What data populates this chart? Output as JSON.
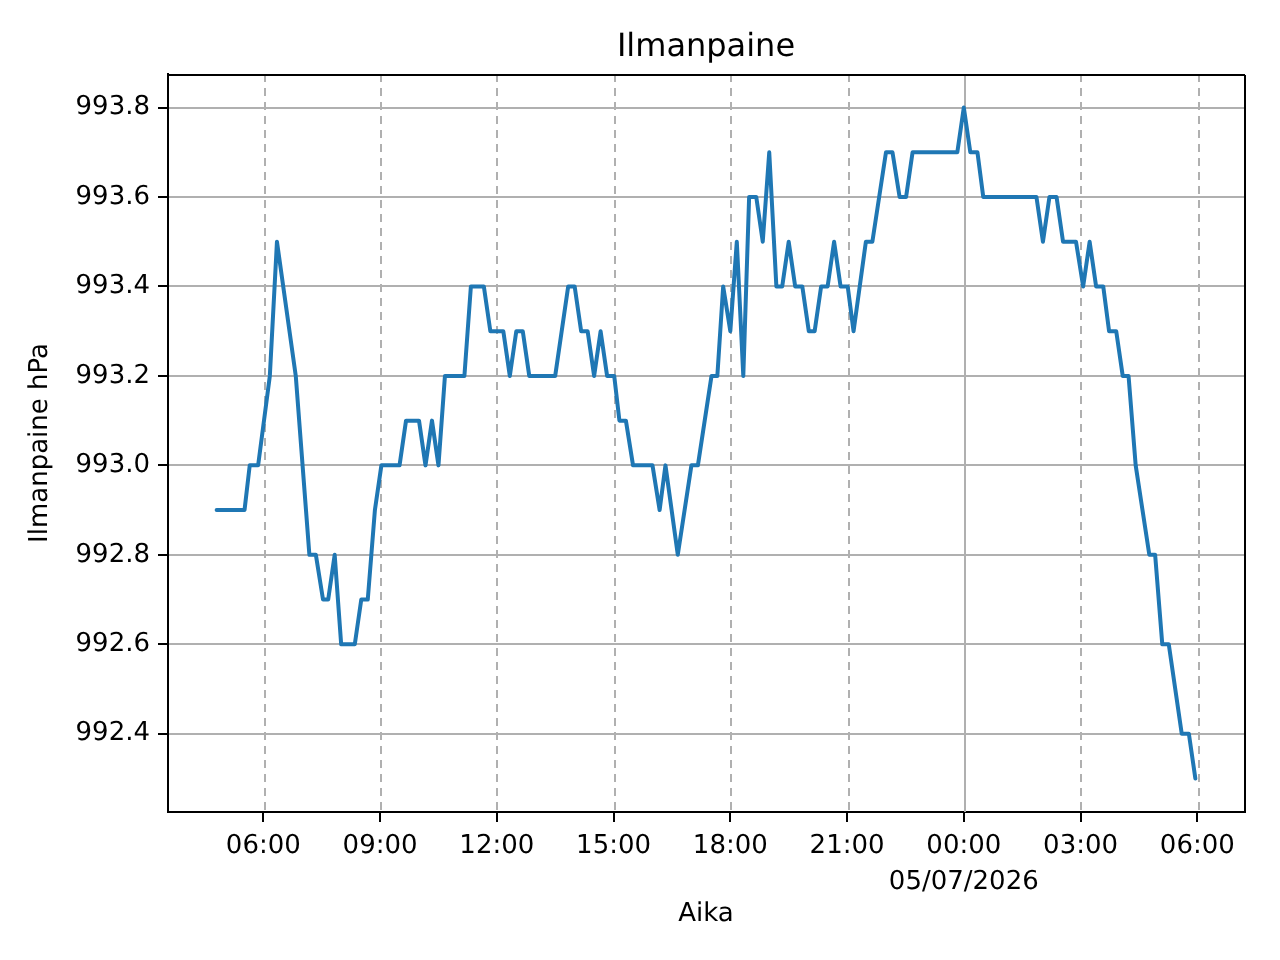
{
  "chart_data": {
    "type": "line",
    "title": "Ilmanpaine",
    "xlabel": "Aika",
    "ylabel": "Ilmanpaine hPa",
    "color": "#1f77b4",
    "grid": true,
    "x": [
      "2026-05-06T04:48",
      "2026-05-06T05:31",
      "2026-05-06T05:39",
      "2026-05-06T05:52",
      "2026-05-06T06:10",
      "2026-05-06T06:21",
      "2026-05-06T06:50",
      "2026-05-06T07:11",
      "2026-05-06T07:21",
      "2026-05-06T07:32",
      "2026-05-06T07:40",
      "2026-05-06T07:50",
      "2026-05-06T08:00",
      "2026-05-06T08:21",
      "2026-05-06T08:31",
      "2026-05-06T08:41",
      "2026-05-06T08:52",
      "2026-05-06T09:02",
      "2026-05-06T09:30",
      "2026-05-06T09:40",
      "2026-05-06T10:00",
      "2026-05-06T10:10",
      "2026-05-06T10:20",
      "2026-05-06T10:30",
      "2026-05-06T10:40",
      "2026-05-06T11:10",
      "2026-05-06T11:20",
      "2026-05-06T11:40",
      "2026-05-06T11:50",
      "2026-05-06T12:10",
      "2026-05-06T12:20",
      "2026-05-06T12:30",
      "2026-05-06T12:40",
      "2026-05-06T12:50",
      "2026-05-06T13:30",
      "2026-05-06T13:50",
      "2026-05-06T14:00",
      "2026-05-06T14:10",
      "2026-05-06T14:20",
      "2026-05-06T14:30",
      "2026-05-06T14:40",
      "2026-05-06T14:50",
      "2026-05-06T15:01",
      "2026-05-06T15:09",
      "2026-05-06T15:19",
      "2026-05-06T15:30",
      "2026-05-06T16:00",
      "2026-05-06T16:11",
      "2026-05-06T16:20",
      "2026-05-06T16:39",
      "2026-05-06T17:00",
      "2026-05-06T17:10",
      "2026-05-06T17:31",
      "2026-05-06T17:40",
      "2026-05-06T17:49",
      "2026-05-06T18:00",
      "2026-05-06T18:10",
      "2026-05-06T18:20",
      "2026-05-06T18:29",
      "2026-05-06T18:40",
      "2026-05-06T18:50",
      "2026-05-06T19:00",
      "2026-05-06T19:11",
      "2026-05-06T19:20",
      "2026-05-06T19:30",
      "2026-05-06T19:40",
      "2026-05-06T19:51",
      "2026-05-06T20:01",
      "2026-05-06T20:10",
      "2026-05-06T20:20",
      "2026-05-06T20:30",
      "2026-05-06T20:40",
      "2026-05-06T20:50",
      "2026-05-06T21:01",
      "2026-05-06T21:10",
      "2026-05-06T21:29",
      "2026-05-06T21:39",
      "2026-05-06T22:00",
      "2026-05-06T22:10",
      "2026-05-06T22:21",
      "2026-05-06T22:31",
      "2026-05-06T22:41",
      "2026-05-06T23:50",
      "2026-05-07T00:00",
      "2026-05-07T00:10",
      "2026-05-07T00:21",
      "2026-05-07T00:30",
      "2026-05-07T01:52",
      "2026-05-07T02:02",
      "2026-05-07T02:12",
      "2026-05-07T02:23",
      "2026-05-07T02:33",
      "2026-05-07T02:53",
      "2026-05-07T03:04",
      "2026-05-07T03:14",
      "2026-05-07T03:24",
      "2026-05-07T03:35",
      "2026-05-07T03:44",
      "2026-05-07T03:55",
      "2026-05-07T04:05",
      "2026-05-07T04:14",
      "2026-05-07T04:25",
      "2026-05-07T04:46",
      "2026-05-07T04:55",
      "2026-05-07T05:06",
      "2026-05-07T05:16",
      "2026-05-07T05:36",
      "2026-05-07T05:47",
      "2026-05-07T05:57"
    ],
    "values": [
      992.9,
      992.9,
      993.0,
      993.0,
      993.2,
      993.5,
      993.2,
      992.8,
      992.8,
      992.7,
      992.7,
      992.8,
      992.6,
      992.6,
      992.7,
      992.7,
      992.9,
      993.0,
      993.0,
      993.1,
      993.1,
      993.0,
      993.1,
      993.0,
      993.2,
      993.2,
      993.4,
      993.4,
      993.3,
      993.3,
      993.2,
      993.3,
      993.3,
      993.2,
      993.2,
      993.4,
      993.4,
      993.3,
      993.3,
      993.2,
      993.3,
      993.2,
      993.2,
      993.1,
      993.1,
      993.0,
      993.0,
      992.9,
      993.0,
      992.8,
      993.0,
      993.0,
      993.2,
      993.2,
      993.4,
      993.3,
      993.5,
      993.2,
      993.6,
      993.6,
      993.5,
      993.7,
      993.4,
      993.4,
      993.5,
      993.4,
      993.4,
      993.3,
      993.3,
      993.4,
      993.4,
      993.5,
      993.4,
      993.4,
      993.3,
      993.5,
      993.5,
      993.7,
      993.7,
      993.6,
      993.6,
      993.7,
      993.7,
      993.8,
      993.7,
      993.7,
      993.6,
      993.6,
      993.5,
      993.6,
      993.6,
      993.5,
      993.5,
      993.4,
      993.5,
      993.4,
      993.4,
      993.3,
      993.3,
      993.2,
      993.2,
      993.0,
      992.8,
      992.8,
      992.6,
      992.6,
      992.4,
      992.4,
      992.3
    ],
    "xlim": [
      "2026-05-06T03:33",
      "2026-05-07T07:12"
    ],
    "xticks": [
      {
        "value": "2026-05-06T06:00",
        "label": "06:00"
      },
      {
        "value": "2026-05-06T09:00",
        "label": "09:00"
      },
      {
        "value": "2026-05-06T12:00",
        "label": "12:00"
      },
      {
        "value": "2026-05-06T15:00",
        "label": "15:00"
      },
      {
        "value": "2026-05-06T18:00",
        "label": "18:00"
      },
      {
        "value": "2026-05-06T21:00",
        "label": "21:00"
      },
      {
        "value": "2026-05-07T00:00",
        "label": "00:00\n05/07/2026"
      },
      {
        "value": "2026-05-07T03:00",
        "label": "03:00"
      },
      {
        "value": "2026-05-07T06:00",
        "label": "06:00"
      }
    ],
    "ylim": [
      992.225,
      993.875
    ],
    "yticks": [
      992.4,
      992.6,
      992.8,
      {
        "value": 993,
        "label": "993.0"
      },
      993.2,
      993.4,
      993.6,
      993.8
    ]
  }
}
